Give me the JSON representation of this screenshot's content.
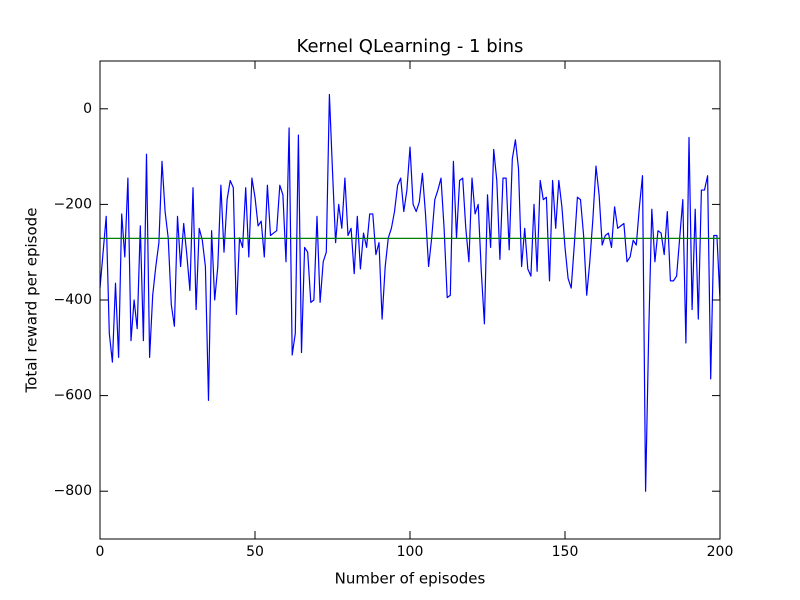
{
  "chart_data": {
    "type": "line",
    "title": "Kernel QLearning - 1 bins",
    "xlabel": "Number of episodes",
    "ylabel": "Total reward per episode",
    "xlim": [
      0,
      200
    ],
    "ylim": [
      -900,
      100
    ],
    "xticks": [
      0,
      50,
      100,
      150,
      200
    ],
    "yticks": [
      {
        "value": -800,
        "label": "−800"
      },
      {
        "value": -600,
        "label": "−600"
      },
      {
        "value": -400,
        "label": "−400"
      },
      {
        "value": -200,
        "label": "−200"
      },
      0
    ],
    "grid": false,
    "series": [
      {
        "color": "#0000ff",
        "x": [
          0,
          1,
          2,
          3,
          4,
          5,
          6,
          7,
          8,
          9,
          10,
          11,
          12,
          13,
          14,
          15,
          16,
          17,
          18,
          19,
          20,
          21,
          22,
          23,
          24,
          25,
          26,
          27,
          28,
          29,
          30,
          31,
          32,
          33,
          34,
          35,
          36,
          37,
          38,
          39,
          40,
          41,
          42,
          43,
          44,
          45,
          46,
          47,
          48,
          49,
          50,
          51,
          52,
          53,
          54,
          55,
          56,
          57,
          58,
          59,
          60,
          61,
          62,
          63,
          64,
          65,
          66,
          67,
          68,
          69,
          70,
          71,
          72,
          73,
          74,
          75,
          76,
          77,
          78,
          79,
          80,
          81,
          82,
          83,
          84,
          85,
          86,
          87,
          88,
          89,
          90,
          91,
          92,
          93,
          94,
          95,
          96,
          97,
          98,
          99,
          100,
          101,
          102,
          103,
          104,
          105,
          106,
          107,
          108,
          109,
          110,
          111,
          112,
          113,
          114,
          115,
          116,
          117,
          118,
          119,
          120,
          121,
          122,
          123,
          124,
          125,
          126,
          127,
          128,
          129,
          130,
          131,
          132,
          133,
          134,
          135,
          136,
          137,
          138,
          139,
          140,
          141,
          142,
          143,
          144,
          145,
          146,
          147,
          148,
          149,
          150,
          151,
          152,
          153,
          154,
          155,
          156,
          157,
          158,
          159,
          160,
          161,
          162,
          163,
          164,
          165,
          166,
          167,
          168,
          169,
          170,
          171,
          172,
          173,
          174,
          175,
          176,
          177,
          178,
          179,
          180,
          181,
          182,
          183,
          184,
          185,
          186,
          187,
          188,
          189,
          190,
          191,
          192,
          193,
          194,
          195,
          196,
          197,
          198,
          199,
          200
        ],
        "values": [
          -375,
          -300,
          -225,
          -470,
          -530,
          -365,
          -520,
          -220,
          -310,
          -145,
          -485,
          -400,
          -460,
          -245,
          -485,
          -95,
          -520,
          -390,
          -330,
          -280,
          -110,
          -215,
          -270,
          -410,
          -455,
          -225,
          -330,
          -240,
          -305,
          -380,
          -165,
          -420,
          -250,
          -275,
          -330,
          -610,
          -255,
          -400,
          -330,
          -160,
          -300,
          -190,
          -150,
          -165,
          -430,
          -270,
          -290,
          -165,
          -310,
          -145,
          -185,
          -245,
          -235,
          -310,
          -160,
          -265,
          -260,
          -255,
          -160,
          -180,
          -320,
          -40,
          -515,
          -470,
          -55,
          -510,
          -290,
          -300,
          -405,
          -400,
          -225,
          -405,
          -320,
          -300,
          30,
          -130,
          -280,
          -200,
          -250,
          -145,
          -265,
          -250,
          -345,
          -225,
          -335,
          -260,
          -290,
          -220,
          -220,
          -305,
          -280,
          -440,
          -330,
          -270,
          -250,
          -215,
          -160,
          -145,
          -215,
          -170,
          -80,
          -200,
          -215,
          -195,
          -135,
          -220,
          -330,
          -270,
          -190,
          -170,
          -145,
          -250,
          -395,
          -390,
          -110,
          -270,
          -150,
          -145,
          -250,
          -320,
          -145,
          -220,
          -200,
          -340,
          -450,
          -180,
          -290,
          -85,
          -150,
          -315,
          -145,
          -145,
          -295,
          -105,
          -65,
          -125,
          -330,
          -250,
          -335,
          -350,
          -200,
          -340,
          -150,
          -190,
          -185,
          -360,
          -150,
          -250,
          -150,
          -205,
          -290,
          -355,
          -375,
          -285,
          -185,
          -190,
          -265,
          -390,
          -320,
          -230,
          -120,
          -180,
          -285,
          -265,
          -260,
          -290,
          -205,
          -250,
          -245,
          -240,
          -320,
          -310,
          -275,
          -285,
          -205,
          -140,
          -800,
          -470,
          -210,
          -320,
          -255,
          -260,
          -305,
          -215,
          -360,
          -360,
          -350,
          -270,
          -190,
          -490,
          -60,
          -420,
          -210,
          -440,
          -170,
          -170,
          -140,
          -565,
          -265,
          -265,
          -400
        ]
      },
      {
        "color": "#008000",
        "x": [
          0,
          200
        ],
        "values": [
          -271,
          -271
        ]
      }
    ]
  }
}
